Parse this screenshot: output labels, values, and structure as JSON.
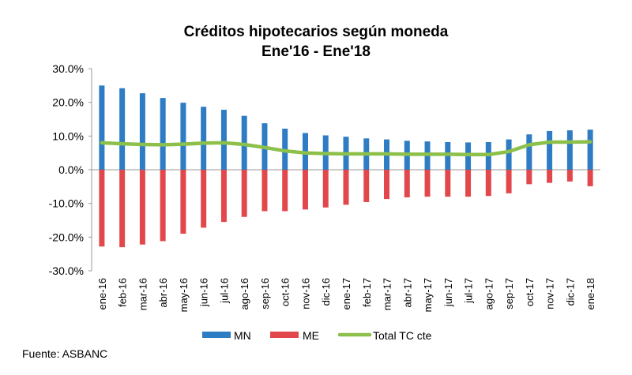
{
  "chart_data": {
    "type": "bar",
    "title": "Créditos hipotecarios según moneda",
    "subtitle": "Ene'16 - Ene'18",
    "categories": [
      "ene-16",
      "feb-16",
      "mar-16",
      "abr-16",
      "may-16",
      "jun-16",
      "jul-16",
      "ago-16",
      "sep-16",
      "oct-16",
      "nov-16",
      "dic-16",
      "ene-17",
      "feb-17",
      "mar-17",
      "abr-17",
      "may-17",
      "jun-17",
      "jul-17",
      "ago-17",
      "sep-17",
      "oct-17",
      "nov-17",
      "dic-17",
      "ene-18"
    ],
    "yticks": [
      "30.0%",
      "20.0%",
      "10.0%",
      "0.0%",
      "-10.0%",
      "-20.0%",
      "-30.0%"
    ],
    "ylim": [
      -30,
      30
    ],
    "grid": false,
    "legend_position": "bottom",
    "series": [
      {
        "name": "MN",
        "type": "bar",
        "color": "#2e7cc4",
        "values": [
          25.0,
          24.2,
          22.7,
          21.3,
          19.9,
          18.7,
          17.8,
          16.0,
          13.8,
          12.2,
          10.9,
          10.2,
          9.8,
          9.3,
          9.0,
          8.6,
          8.4,
          8.2,
          8.1,
          8.2,
          9.0,
          10.5,
          11.5,
          11.7,
          11.9
        ]
      },
      {
        "name": "ME",
        "type": "bar",
        "color": "#e2484b",
        "values": [
          -22.8,
          -23.0,
          -22.2,
          -21.2,
          -19.0,
          -17.2,
          -15.5,
          -14.0,
          -12.3,
          -12.3,
          -11.8,
          -11.2,
          -10.4,
          -9.6,
          -8.7,
          -8.2,
          -8.0,
          -8.0,
          -8.0,
          -7.8,
          -7.0,
          -4.3,
          -3.9,
          -3.5,
          -4.9
        ]
      },
      {
        "name": "Total TC cte",
        "type": "line",
        "color": "#8cc04b",
        "values": [
          8.0,
          7.7,
          7.5,
          7.4,
          7.6,
          7.9,
          8.0,
          7.5,
          6.6,
          5.6,
          5.0,
          4.8,
          4.7,
          4.7,
          4.7,
          4.6,
          4.6,
          4.6,
          4.5,
          4.5,
          5.4,
          7.4,
          8.2,
          8.2,
          8.3
        ]
      }
    ]
  },
  "source": "Fuente: ASBANC"
}
